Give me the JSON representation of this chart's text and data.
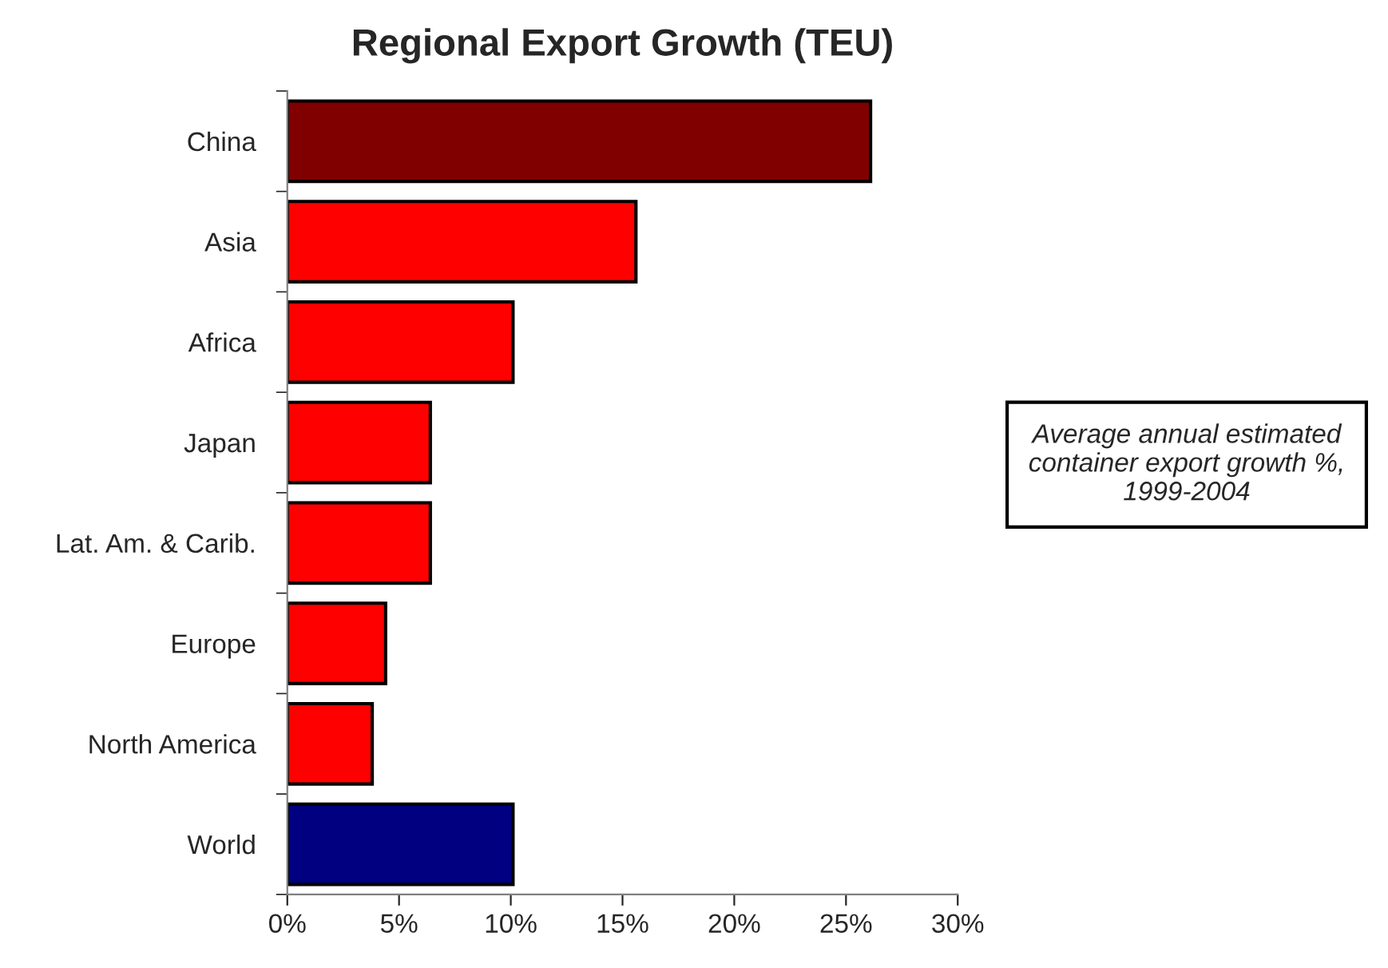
{
  "chart_data": {
    "type": "bar",
    "orientation": "horizontal",
    "title": "Regional Export Growth (TEU)",
    "categories": [
      "China",
      "Asia",
      "Africa",
      "Japan",
      "Lat. Am. & Carib.",
      "Europe",
      "North America",
      "World"
    ],
    "values": [
      26.1,
      15.6,
      10.1,
      6.4,
      6.4,
      4.4,
      3.8,
      10.1
    ],
    "colors": [
      "#800000",
      "#ff0000",
      "#ff0000",
      "#ff0000",
      "#ff0000",
      "#ff0000",
      "#ff0000",
      "#000080"
    ],
    "xlim": [
      0,
      30
    ],
    "xticks": [
      {
        "value": 0,
        "label": "0%"
      },
      {
        "value": 5,
        "label": "5%"
      },
      {
        "value": 10,
        "label": "10%"
      },
      {
        "value": 15,
        "label": "15%"
      },
      {
        "value": 20,
        "label": "20%"
      },
      {
        "value": 25,
        "label": "25%"
      },
      {
        "value": 30,
        "label": "30%"
      }
    ],
    "annotations": [
      "Average annual estimated container export growth %, 1999-2004"
    ],
    "grid": false,
    "legend": false
  }
}
